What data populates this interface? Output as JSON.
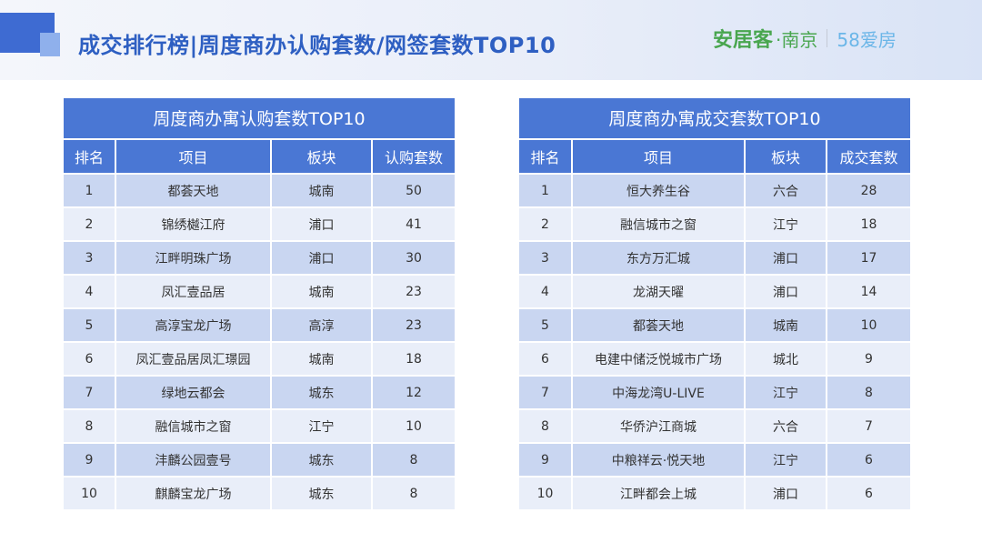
{
  "page_title": "成交排行榜|周度商办认购套数/网签套数TOP10",
  "logos": {
    "anjuke": "安居客",
    "city": "·南京",
    "brand_58": "58爱房"
  },
  "colors": {
    "accent": "#4a77d4",
    "title": "#2e5fc2",
    "row_dark": "#c9d6f1",
    "row_light": "#e9eef9"
  },
  "left_table": {
    "title": "周度商办寓认购套数TOP10",
    "headers": [
      "排名",
      "项目",
      "板块",
      "认购套数"
    ],
    "rows": [
      [
        "1",
        "都荟天地",
        "城南",
        "50"
      ],
      [
        "2",
        "锦绣樾江府",
        "浦口",
        "41"
      ],
      [
        "3",
        "江畔明珠广场",
        "浦口",
        "30"
      ],
      [
        "4",
        "凤汇壹品居",
        "城南",
        "23"
      ],
      [
        "5",
        "高淳宝龙广场",
        "高淳",
        "23"
      ],
      [
        "6",
        "凤汇壹品居凤汇璟园",
        "城南",
        "18"
      ],
      [
        "7",
        "绿地云都会",
        "城东",
        "12"
      ],
      [
        "8",
        "融信城市之窗",
        "江宁",
        "10"
      ],
      [
        "9",
        "沣麟公园壹号",
        "城东",
        "8"
      ],
      [
        "10",
        "麒麟宝龙广场",
        "城东",
        "8"
      ]
    ]
  },
  "right_table": {
    "title": "周度商办寓成交套数TOP10",
    "headers": [
      "排名",
      "项目",
      "板块",
      "成交套数"
    ],
    "rows": [
      [
        "1",
        "恒大养生谷",
        "六合",
        "28"
      ],
      [
        "2",
        "融信城市之窗",
        "江宁",
        "18"
      ],
      [
        "3",
        "东方万汇城",
        "浦口",
        "17"
      ],
      [
        "4",
        "龙湖天曜",
        "浦口",
        "14"
      ],
      [
        "5",
        "都荟天地",
        "城南",
        "10"
      ],
      [
        "6",
        "电建中储泛悦城市广场",
        "城北",
        "9"
      ],
      [
        "7",
        "中海龙湾U-LIVE",
        "江宁",
        "8"
      ],
      [
        "8",
        "华侨沪江商城",
        "六合",
        "7"
      ],
      [
        "9",
        "中粮祥云·悦天地",
        "江宁",
        "6"
      ],
      [
        "10",
        "江畔都会上城",
        "浦口",
        "6"
      ]
    ]
  }
}
